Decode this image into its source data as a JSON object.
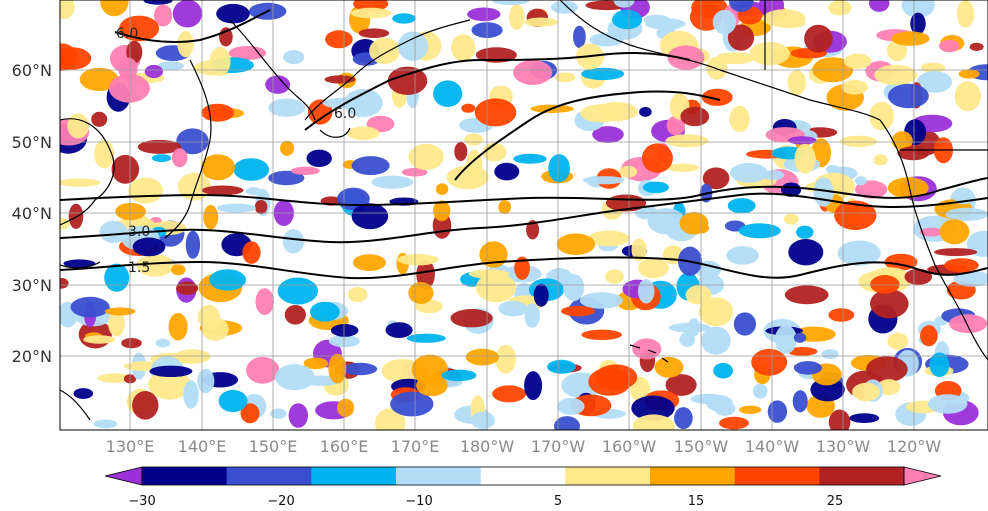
{
  "map": {
    "lat_labels": [
      "60°N",
      "50°N",
      "40°N",
      "30°N",
      "20°N"
    ],
    "lon_labels": [
      "130°E",
      "140°E",
      "150°E",
      "160°E",
      "170°E",
      "180°W",
      "170°W",
      "160°W",
      "150°W",
      "140°W",
      "130°W",
      "120°W"
    ],
    "contour_labels": [
      "6.0",
      "6.0",
      "3.0",
      "1.5"
    ]
  },
  "colorbar": {
    "tick_labels": [
      "−30",
      "−20",
      "−10",
      "5",
      "15",
      "25"
    ],
    "colors": [
      "#9b30d9",
      "#00008b",
      "#3a4fd0",
      "#00b4f0",
      "#b3dcf7",
      "#ffffff",
      "#ffe98c",
      "#ffa500",
      "#ff4500",
      "#b22222",
      "#ff7fb3"
    ]
  }
}
